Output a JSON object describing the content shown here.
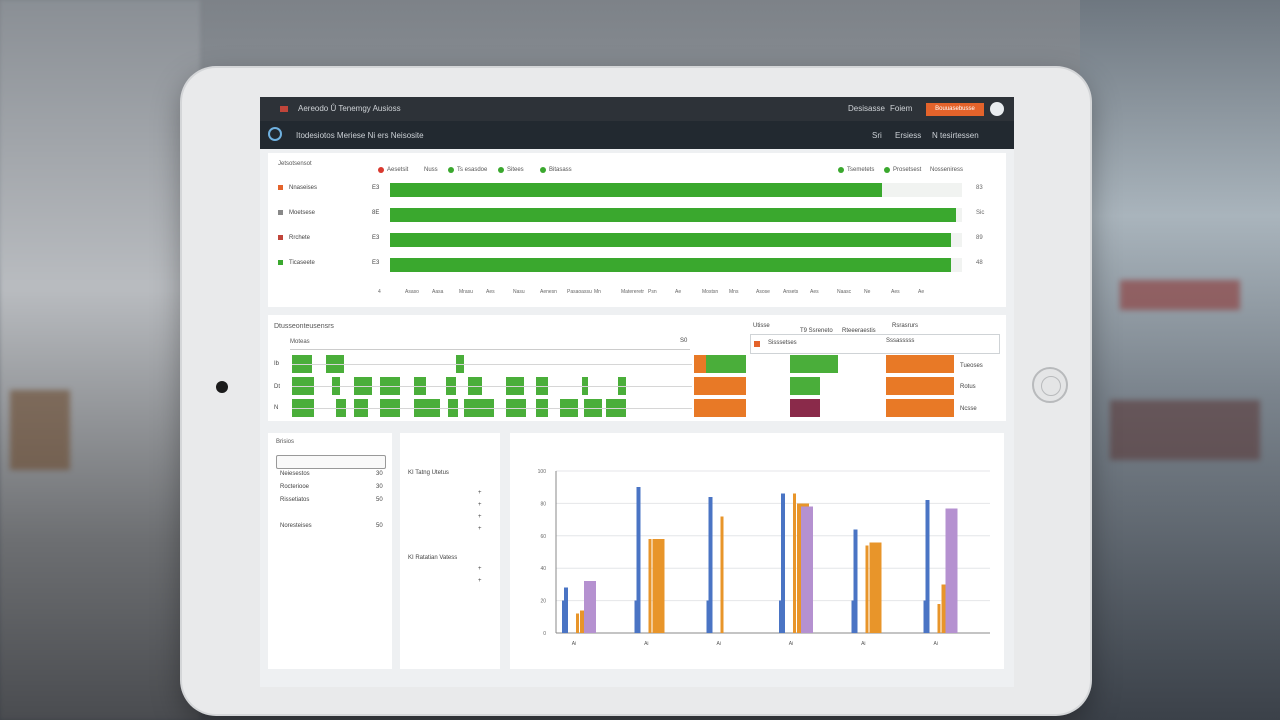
{
  "app": {
    "title": "Aereodo Ů Tenemgy  Ausioss",
    "nav": [
      "Desisasse",
      "Foiem"
    ],
    "cta_label": "Bouuasebusse",
    "breadcrumb": "Itodesiotos Meriese  Ni  ers  Neisosite",
    "sub_nav": [
      "Sri",
      "Ersiess",
      "N  tesirtessen"
    ]
  },
  "progress_panel": {
    "heading": "Jetsotsensot",
    "legend": [
      {
        "label": "Aesetsit",
        "color": "#d9392f"
      },
      {
        "label": "Nuss",
        "color": "#888888"
      },
      {
        "label": "Ts esasdoe",
        "color": "#3aa82e"
      },
      {
        "label": "Sitees",
        "color": "#3aa82e"
      },
      {
        "label": "Bitasass",
        "color": "#3aa82e"
      }
    ],
    "legend_right": [
      {
        "label": "Tsemetets",
        "color": "#3aa82e"
      },
      {
        "label": "Prosetsest",
        "color": "#3aa82e"
      },
      {
        "label": "Nosseniress",
        "color": "#888888"
      }
    ],
    "rows": [
      {
        "label": "Nnaseises",
        "value": "E3",
        "fill": 0.86,
        "status": "#e4632b"
      },
      {
        "label": "Moetsese",
        "value": "8E",
        "fill": 0.99,
        "status": "#888888"
      },
      {
        "label": "Rrchete",
        "value": "E3",
        "fill": 0.98,
        "status": "#c0453a"
      },
      {
        "label": "Ticaseete",
        "value": "E3",
        "fill": 0.98,
        "status": "#3aa82e"
      }
    ],
    "row_checks": [
      "83",
      "Sic",
      "89",
      "48"
    ],
    "axis_ticks": [
      "4",
      "Asaso",
      "Aasa",
      "Mrasu",
      "Aes",
      "Nasu",
      "Aenesn",
      "Pasaoassu",
      "Mn",
      "Matereretr",
      "Psn",
      "Ae",
      "Mostsn",
      "Mns",
      "Asose",
      "Ansets",
      "Aes",
      "Naasc",
      "Ne",
      "Aes",
      "Ae"
    ]
  },
  "schedule_panel": {
    "heading": "Dtusseonteusensrs",
    "subheading": "Moteas",
    "row_markers": [
      "Ib",
      "Dt",
      "N"
    ],
    "right_header": [
      "Utisse",
      "T9 Ssreneto",
      "Rteeeraestis",
      "Rsrasrurs"
    ],
    "right_sub": [
      "S0",
      "Sisssetses",
      "Sssasssss"
    ],
    "right_rows": [
      "Tueoses",
      "Rotus",
      "Ncsse"
    ],
    "bar_colors": {
      "green": "#4aae3a",
      "orange": "#e87926",
      "maroon": "#8a2a4a",
      "red": "#d9392f"
    }
  },
  "list_panel": {
    "heading": "Brisios",
    "items": [
      {
        "label": "Neiesestos",
        "value": "30"
      },
      {
        "label": "Rocteriooe",
        "value": "30"
      },
      {
        "label": "Rissetiatos",
        "value": "50"
      },
      {
        "label": "Noresteises",
        "value": "50"
      }
    ]
  },
  "info_panel": {
    "title1": "KI Tatng  Utetus",
    "title2": "KI Ratatian  Vatess",
    "marks": [
      "+",
      "+",
      "+",
      "+",
      "+",
      "+"
    ]
  },
  "chart_data": {
    "type": "bar",
    "categories": [
      "Ai",
      "Ai",
      "Ai",
      "Ai",
      "Ai",
      "Ai"
    ],
    "ylim": [
      0,
      100
    ],
    "yticks": [
      "0",
      "20",
      "40",
      "60",
      "80",
      "100"
    ],
    "series": [
      {
        "color": "#4a74c4",
        "values": [
          28,
          90,
          84,
          86,
          64,
          82
        ]
      },
      {
        "color": "#4a74c4",
        "values": [
          20,
          20,
          20,
          20,
          20,
          20
        ]
      },
      {
        "color": "#e8952a",
        "values": [
          12,
          58,
          72,
          86,
          54,
          18
        ]
      },
      {
        "color": "#e8952a",
        "values": [
          14,
          58,
          0,
          80,
          56,
          30
        ]
      },
      {
        "color": "#b591d0",
        "values": [
          32,
          0,
          0,
          78,
          0,
          77
        ]
      }
    ],
    "grid": true
  }
}
